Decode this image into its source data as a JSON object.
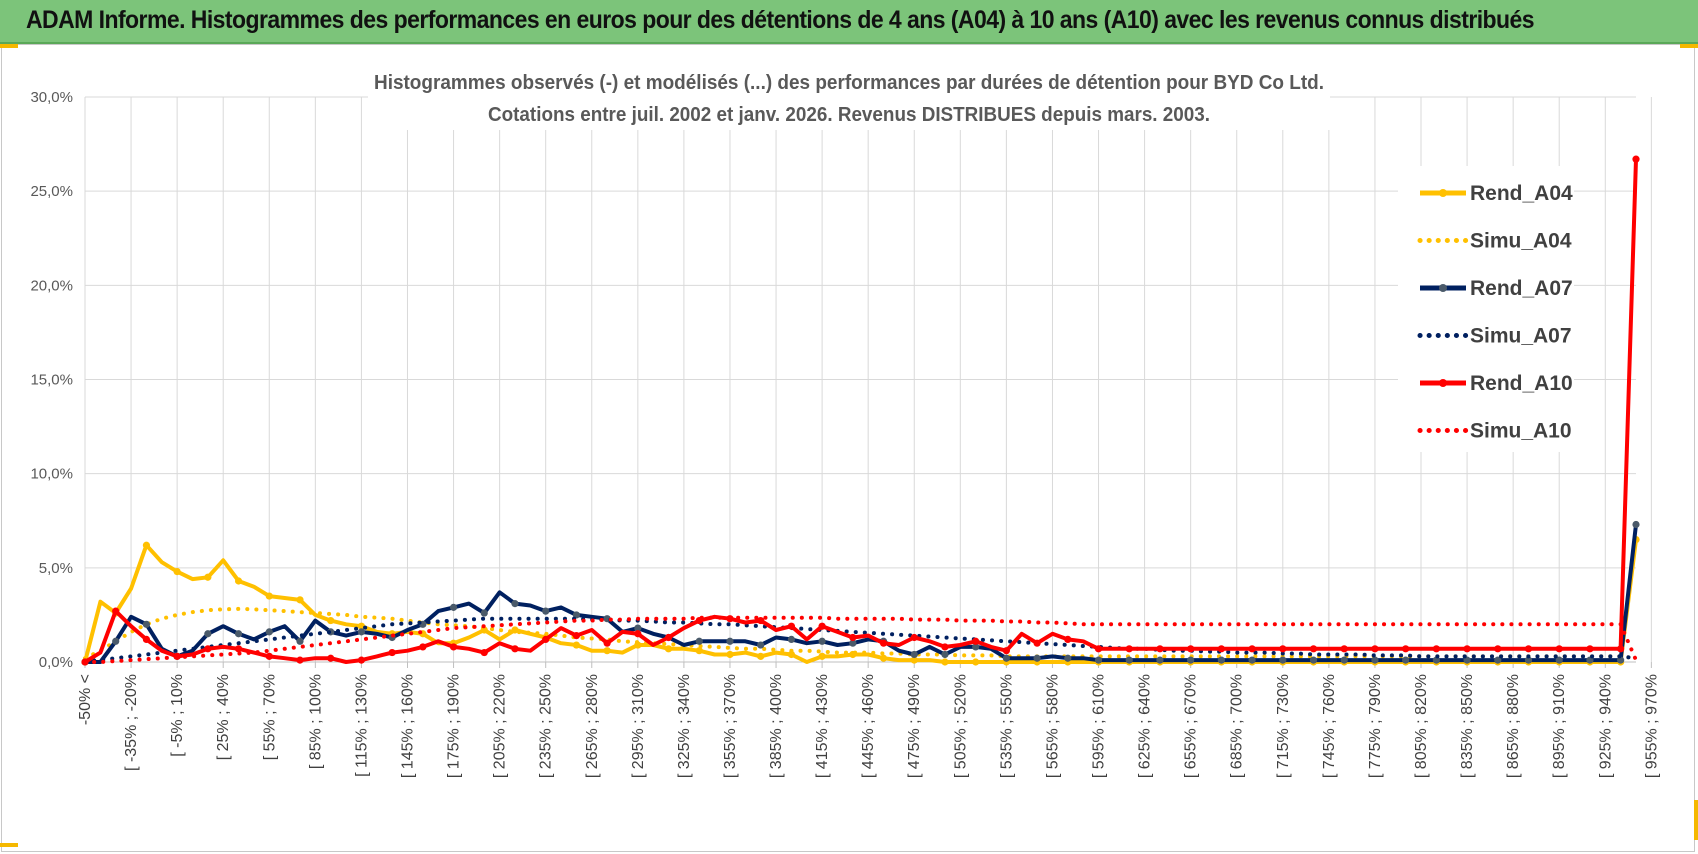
{
  "banner": {
    "title": "ADAM Informe. Histogrammes des performances en euros pour des détentions de 4 ans (A04) à 10 ans (A10) avec les revenus connus distribués"
  },
  "colors": {
    "banner_bg": "#7cc47a",
    "A04": "#FFC000",
    "A07": "#002060",
    "A10": "#FF0000",
    "A07_marker": "#4a5a6a",
    "grid": "#d9d9d9"
  },
  "chart_data": {
    "type": "line",
    "title": "Histogrammes observés (-) et modélisés (...) des performances par durées de détention pour BYD Co Ltd.",
    "subtitle": "Cotations entre juil. 2002 et janv. 2026. Revenus DISTRIBUES depuis mars. 2003.",
    "ylim": [
      0,
      30
    ],
    "y_ticks": [
      "0,0%",
      "5,0%",
      "10,0%",
      "15,0%",
      "20,0%",
      "25,0%",
      "30,0%"
    ],
    "y_tick_values": [
      0,
      5,
      10,
      15,
      20,
      25,
      30
    ],
    "grid": true,
    "legend_position": "right",
    "x_tick_labels": [
      "-50% <",
      "[ -35% ; -20%",
      "[ -5% ; 10%",
      "[ 25% ; 40%",
      "[ 55% ; 70%",
      "[ 85% ; 100%",
      "[ 115% ; 130%",
      "[ 145% ; 160%",
      "[ 175% ; 190%",
      "[ 205% ; 220%",
      "[ 235% ; 250%",
      "[ 265% ; 280%",
      "[ 295% ; 310%",
      "[ 325% ; 340%",
      "[ 355% ; 370%",
      "[ 385% ; 400%",
      "[ 415% ; 430%",
      "[ 445% ; 460%",
      "[ 475% ; 490%",
      "[ 505% ; 520%",
      "[ 535% ; 550%",
      "[ 565% ; 580%",
      "[ 595% ; 610%",
      "[ 625% ; 640%",
      "[ 655% ; 670%",
      "[ 685% ; 700%",
      "[ 715% ; 730%",
      "[ 745% ; 760%",
      "[ 775% ; 790%",
      "[ 805% ; 820%",
      "[ 835% ; 850%",
      "[ 865% ; 880%",
      "[ 895% ; 910%",
      "[ 925% ; 940%",
      "[ 955% ; 970%"
    ],
    "series": [
      {
        "name": "Rend_A04",
        "style": "solid",
        "color": "#FFC000",
        "values": [
          0.0,
          3.2,
          2.6,
          3.9,
          6.2,
          5.3,
          4.8,
          4.4,
          4.5,
          5.4,
          4.3,
          4.0,
          3.5,
          3.4,
          3.3,
          2.5,
          2.2,
          2.0,
          1.9,
          1.6,
          1.5,
          1.6,
          1.5,
          1.0,
          1.0,
          1.3,
          1.7,
          1.2,
          1.7,
          1.5,
          1.3,
          1.0,
          0.9,
          0.6,
          0.6,
          0.5,
          0.9,
          0.9,
          0.7,
          0.7,
          0.6,
          0.4,
          0.4,
          0.5,
          0.3,
          0.5,
          0.4,
          0.0,
          0.3,
          0.3,
          0.4,
          0.4,
          0.2,
          0.1,
          0.1,
          0.1,
          0.0,
          0.0,
          0.0,
          0.0,
          0.0,
          0.0,
          0.0,
          0.0,
          0.0,
          0.0,
          0.0,
          0.0,
          0.0,
          0.0,
          0.0,
          0.0,
          0.0,
          0.0,
          0.0,
          0.0,
          0.0,
          0.0,
          0.0,
          0.0,
          0.0,
          0.0,
          0.0,
          0.0,
          0.0,
          0.0,
          0.0,
          0.0,
          0.0,
          0.0,
          0.0,
          0.0,
          0.0,
          0.0,
          0.0,
          0.0,
          0.0,
          0.0,
          0.0,
          0.0,
          0.0,
          6.5
        ]
      },
      {
        "name": "Simu_A04",
        "style": "dotted",
        "color": "#FFC000",
        "values": [
          0.2,
          0.6,
          1.1,
          1.6,
          2.0,
          2.3,
          2.5,
          2.65,
          2.75,
          2.8,
          2.82,
          2.8,
          2.75,
          2.7,
          2.65,
          2.6,
          2.55,
          2.5,
          2.4,
          2.35,
          2.3,
          2.2,
          2.1,
          2.0,
          1.95,
          1.9,
          1.8,
          1.7,
          1.6,
          1.55,
          1.5,
          1.4,
          1.3,
          1.25,
          1.2,
          1.1,
          1.05,
          1.0,
          0.95,
          0.9,
          0.85,
          0.8,
          0.75,
          0.7,
          0.7,
          0.65,
          0.6,
          0.6,
          0.55,
          0.5,
          0.5,
          0.5,
          0.45,
          0.45,
          0.4,
          0.4,
          0.4,
          0.35,
          0.35,
          0.35,
          0.3,
          0.3,
          0.3,
          0.3,
          0.3,
          0.3,
          0.3,
          0.3,
          0.3,
          0.3,
          0.3,
          0.3,
          0.3,
          0.3,
          0.3,
          0.3,
          0.3,
          0.3,
          0.3,
          0.3,
          0.3,
          0.3,
          0.3,
          0.3,
          0.3,
          0.3,
          0.3,
          0.3,
          0.3,
          0.3,
          0.3,
          0.3,
          0.3,
          0.3,
          0.3,
          0.3,
          0.3,
          0.3,
          0.3,
          0.3,
          0.3,
          0.2
        ]
      },
      {
        "name": "Rend_A07",
        "style": "solid",
        "color": "#002060",
        "values": [
          0.0,
          0.0,
          1.1,
          2.4,
          2.0,
          0.7,
          0.3,
          0.6,
          1.5,
          1.9,
          1.5,
          1.2,
          1.6,
          1.9,
          1.1,
          2.2,
          1.6,
          1.4,
          1.6,
          1.5,
          1.3,
          1.7,
          2.0,
          2.7,
          2.9,
          3.1,
          2.6,
          3.7,
          3.1,
          3.0,
          2.7,
          2.9,
          2.5,
          2.4,
          2.3,
          1.6,
          1.8,
          1.5,
          1.3,
          0.9,
          1.1,
          1.1,
          1.1,
          1.1,
          0.9,
          1.3,
          1.2,
          1.0,
          1.1,
          0.9,
          1.0,
          1.2,
          1.1,
          0.6,
          0.4,
          0.8,
          0.4,
          0.8,
          0.8,
          0.7,
          0.2,
          0.2,
          0.2,
          0.3,
          0.2,
          0.2,
          0.1,
          0.1,
          0.1,
          0.1,
          0.1,
          0.1,
          0.1,
          0.1,
          0.1,
          0.1,
          0.1,
          0.1,
          0.1,
          0.1,
          0.1,
          0.1,
          0.1,
          0.1,
          0.1,
          0.1,
          0.1,
          0.1,
          0.1,
          0.1,
          0.1,
          0.1,
          0.1,
          0.1,
          0.1,
          0.1,
          0.1,
          0.1,
          0.1,
          0.1,
          0.1,
          7.3
        ]
      },
      {
        "name": "Simu_A07",
        "style": "dotted",
        "color": "#002060",
        "values": [
          0.05,
          0.1,
          0.2,
          0.3,
          0.4,
          0.5,
          0.6,
          0.7,
          0.8,
          0.9,
          1.0,
          1.1,
          1.2,
          1.3,
          1.4,
          1.5,
          1.6,
          1.7,
          1.8,
          1.9,
          2.0,
          2.05,
          2.1,
          2.15,
          2.2,
          2.25,
          2.3,
          2.3,
          2.3,
          2.3,
          2.3,
          2.3,
          2.3,
          2.25,
          2.25,
          2.2,
          2.2,
          2.15,
          2.1,
          2.1,
          2.05,
          2.0,
          2.0,
          1.95,
          1.9,
          1.85,
          1.8,
          1.75,
          1.7,
          1.65,
          1.6,
          1.55,
          1.5,
          1.45,
          1.4,
          1.35,
          1.3,
          1.25,
          1.2,
          1.15,
          1.1,
          1.05,
          1.0,
          0.95,
          0.9,
          0.85,
          0.8,
          0.75,
          0.7,
          0.7,
          0.65,
          0.6,
          0.6,
          0.55,
          0.55,
          0.5,
          0.5,
          0.5,
          0.45,
          0.45,
          0.4,
          0.4,
          0.4,
          0.4,
          0.35,
          0.35,
          0.35,
          0.3,
          0.3,
          0.3,
          0.3,
          0.3,
          0.3,
          0.3,
          0.3,
          0.3,
          0.3,
          0.3,
          0.3,
          0.3,
          0.3,
          0.2
        ]
      },
      {
        "name": "Rend_A10",
        "style": "solid",
        "color": "#FF0000",
        "values": [
          0.0,
          0.5,
          2.7,
          1.9,
          1.2,
          0.6,
          0.3,
          0.4,
          0.7,
          0.8,
          0.7,
          0.5,
          0.3,
          0.2,
          0.1,
          0.2,
          0.2,
          0.0,
          0.1,
          0.3,
          0.5,
          0.6,
          0.8,
          1.1,
          0.8,
          0.7,
          0.5,
          1.0,
          0.7,
          0.6,
          1.2,
          1.8,
          1.4,
          1.7,
          1.0,
          1.6,
          1.5,
          0.9,
          1.3,
          1.8,
          2.2,
          2.4,
          2.3,
          2.1,
          2.2,
          1.7,
          1.9,
          1.2,
          1.9,
          1.6,
          1.3,
          1.4,
          1.0,
          0.9,
          1.3,
          1.1,
          0.8,
          0.9,
          1.1,
          0.8,
          0.6,
          1.5,
          1.0,
          1.5,
          1.2,
          1.1,
          0.7,
          0.7,
          0.7,
          0.7,
          0.7,
          0.7,
          0.7,
          0.7,
          0.7,
          0.7,
          0.7,
          0.7,
          0.7,
          0.7,
          0.7,
          0.7,
          0.7,
          0.7,
          0.7,
          0.7,
          0.7,
          0.7,
          0.7,
          0.7,
          0.7,
          0.7,
          0.7,
          0.7,
          0.7,
          0.7,
          0.7,
          0.7,
          0.7,
          0.7,
          0.7,
          26.7
        ]
      },
      {
        "name": "Simu_A10",
        "style": "dotted",
        "color": "#FF0000",
        "values": [
          0.0,
          0.0,
          0.05,
          0.1,
          0.15,
          0.2,
          0.25,
          0.3,
          0.35,
          0.4,
          0.45,
          0.5,
          0.6,
          0.7,
          0.8,
          0.9,
          1.0,
          1.1,
          1.2,
          1.3,
          1.4,
          1.5,
          1.6,
          1.7,
          1.8,
          1.85,
          1.9,
          1.95,
          2.0,
          2.05,
          2.1,
          2.15,
          2.2,
          2.2,
          2.25,
          2.25,
          2.3,
          2.3,
          2.3,
          2.3,
          2.35,
          2.35,
          2.35,
          2.35,
          2.35,
          2.35,
          2.35,
          2.35,
          2.35,
          2.3,
          2.3,
          2.3,
          2.3,
          2.3,
          2.25,
          2.25,
          2.25,
          2.2,
          2.2,
          2.2,
          2.15,
          2.15,
          2.1,
          2.1,
          2.05,
          2.0,
          2.0,
          2.0,
          2.0,
          2.0,
          2.0,
          2.0,
          2.0,
          2.0,
          2.0,
          2.0,
          2.0,
          2.0,
          2.0,
          2.0,
          2.0,
          2.0,
          2.0,
          2.0,
          2.0,
          2.0,
          2.0,
          2.0,
          2.0,
          2.0,
          2.0,
          2.0,
          2.0,
          2.0,
          2.0,
          2.0,
          2.0,
          2.0,
          2.0,
          2.0,
          2.0,
          0.1
        ]
      }
    ]
  }
}
